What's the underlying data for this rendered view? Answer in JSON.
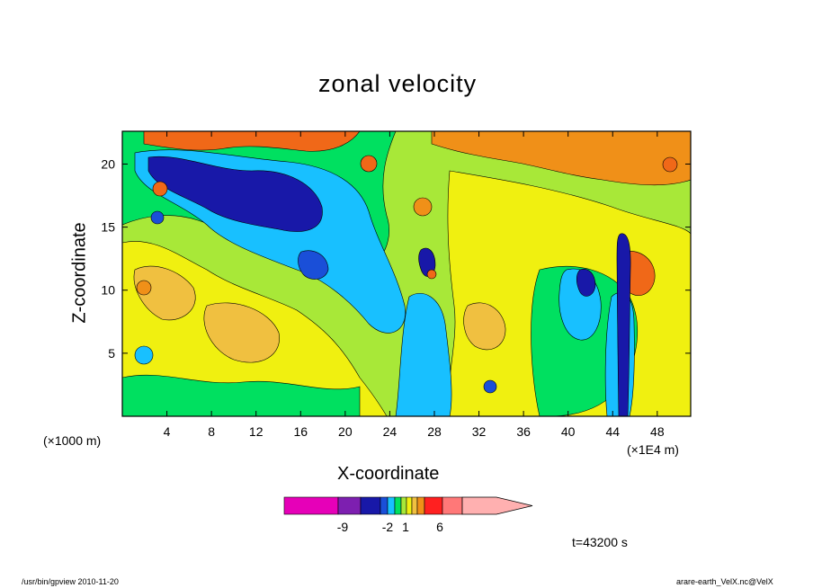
{
  "footer": {
    "left": "/usr/bin/gpview  2010-11-20",
    "right": "arare-earth_VelX.nc@VelX"
  },
  "time_label": "t=43200 s",
  "chart_data": {
    "type": "heatmap",
    "title": "zonal velocity",
    "xlabel": "X-coordinate",
    "ylabel": "Z-coordinate",
    "x_scale_note": "(×1E4 m)",
    "y_scale_note": "(×1000 m)",
    "xlim": [
      0,
      51
    ],
    "ylim": [
      0,
      22.6
    ],
    "x_ticks": [
      4,
      8,
      12,
      16,
      20,
      24,
      28,
      32,
      36,
      40,
      44,
      48
    ],
    "y_ticks": [
      5,
      10,
      15,
      20
    ],
    "grid": false,
    "colorbar": {
      "tick_labels": [
        "-9",
        "-2",
        "1",
        "6"
      ],
      "colors": [
        "#e600b8",
        "#7d1fb0",
        "#1818a8",
        "#1a4fd8",
        "#18c0ff",
        "#00e060",
        "#a8e838",
        "#f0f010",
        "#f0c040",
        "#f09018",
        "#ff2020",
        "#ff7878",
        "#ffb0b0"
      ]
    },
    "colors": {
      "strong_negative": "#1818a8",
      "weak_negative": "#18c0ff",
      "near_zero": "#00e060",
      "weak_positive": "#f0f010",
      "moderate_positive": "#f0c040",
      "strong_positive": "#f06818"
    }
  }
}
